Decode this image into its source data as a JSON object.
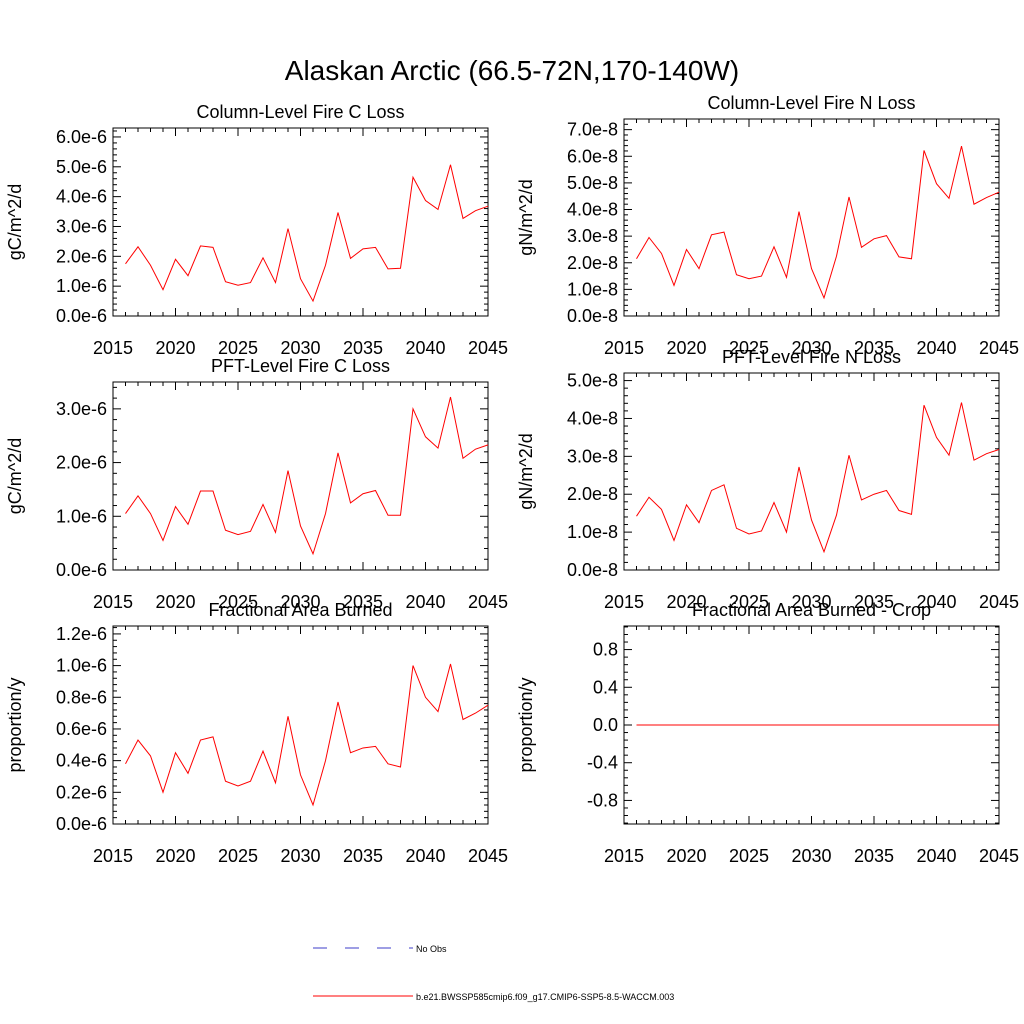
{
  "page_title": "Alaskan Arctic (66.5-72N,170-140W)",
  "colors": {
    "model_line": "#ff0000",
    "obs_line": "#3d3dc8",
    "axes": "#000000"
  },
  "legend": {
    "entries": [
      {
        "label": "No Obs",
        "style": "dashed",
        "color": "#3d3dc8"
      },
      {
        "label": "b.e21.BWSSP585cmip6.f09_g17.CMIP6-SSP5-8.5-WACCM.003",
        "style": "solid",
        "color": "#ff0000"
      }
    ]
  },
  "chart_data": [
    {
      "type": "line",
      "title": "Column-Level Fire C Loss",
      "ylabel": "gC/m^2/d",
      "xlim": [
        2015,
        2045
      ],
      "ylim": [
        0,
        6.3e-06
      ],
      "xticks": [
        2015,
        2020,
        2025,
        2030,
        2035,
        2040,
        2045
      ],
      "xtick_labels": [
        "2015",
        "2020",
        "2025",
        "2030",
        "2035",
        "2040",
        "2045"
      ],
      "yticks": [
        0,
        1e-06,
        2e-06,
        3e-06,
        4e-06,
        5e-06,
        6e-06
      ],
      "ytick_labels": [
        "0.0e-6",
        "1.0e-6",
        "2.0e-6",
        "3.0e-6",
        "4.0e-6",
        "5.0e-6",
        "6.0e-6"
      ],
      "x": [
        2016,
        2017,
        2018,
        2019,
        2020,
        2021,
        2022,
        2023,
        2024,
        2025,
        2026,
        2027,
        2028,
        2029,
        2030,
        2031,
        2032,
        2033,
        2034,
        2035,
        2036,
        2037,
        2038,
        2039,
        2040,
        2041,
        2042,
        2043,
        2044,
        2045
      ],
      "series": [
        {
          "values": [
            1.75e-06,
            2.32e-06,
            1.7e-06,
            8.8e-07,
            1.9e-06,
            1.35e-06,
            2.35e-06,
            2.3e-06,
            1.15e-06,
            1.03e-06,
            1.12e-06,
            1.95e-06,
            1.12e-06,
            2.93e-06,
            1.25e-06,
            5e-07,
            1.7e-06,
            3.47e-06,
            1.93e-06,
            2.25e-06,
            2.3e-06,
            1.58e-06,
            1.6e-06,
            4.65e-06,
            3.87e-06,
            3.57e-06,
            5.07e-06,
            3.27e-06,
            3.53e-06,
            3.68e-06
          ]
        }
      ]
    },
    {
      "type": "line",
      "title": "Column-Level Fire N Loss",
      "ylabel": "gN/m^2/d",
      "xlim": [
        2015,
        2045
      ],
      "ylim": [
        0,
        7.4e-08
      ],
      "xticks": [
        2015,
        2020,
        2025,
        2030,
        2035,
        2040,
        2045
      ],
      "xtick_labels": [
        "2015",
        "2020",
        "2025",
        "2030",
        "2035",
        "2040",
        "2045"
      ],
      "yticks": [
        0,
        1e-08,
        2e-08,
        3e-08,
        4e-08,
        5e-08,
        6e-08,
        7e-08
      ],
      "ytick_labels": [
        "0.0e-8",
        "1.0e-8",
        "2.0e-8",
        "3.0e-8",
        "4.0e-8",
        "5.0e-8",
        "6.0e-8",
        "7.0e-8"
      ],
      "x": [
        2016,
        2017,
        2018,
        2019,
        2020,
        2021,
        2022,
        2023,
        2024,
        2025,
        2026,
        2027,
        2028,
        2029,
        2030,
        2031,
        2032,
        2033,
        2034,
        2035,
        2036,
        2037,
        2038,
        2039,
        2040,
        2041,
        2042,
        2043,
        2044,
        2045
      ],
      "series": [
        {
          "values": [
            2.15e-08,
            2.95e-08,
            2.35e-08,
            1.15e-08,
            2.5e-08,
            1.78e-08,
            3.05e-08,
            3.15e-08,
            1.55e-08,
            1.4e-08,
            1.5e-08,
            2.6e-08,
            1.45e-08,
            3.92e-08,
            1.78e-08,
            6.8e-09,
            2.25e-08,
            4.47e-08,
            2.58e-08,
            2.9e-08,
            3.02e-08,
            2.22e-08,
            2.15e-08,
            6.22e-08,
            4.97e-08,
            4.42e-08,
            6.38e-08,
            4.2e-08,
            4.45e-08,
            4.65e-08
          ]
        }
      ]
    },
    {
      "type": "line",
      "title": "PFT-Level Fire C Loss",
      "ylabel": "gC/m^2/d",
      "xlim": [
        2015,
        2045
      ],
      "ylim": [
        0,
        3.5e-06
      ],
      "xticks": [
        2015,
        2020,
        2025,
        2030,
        2035,
        2040,
        2045
      ],
      "xtick_labels": [
        "2015",
        "2020",
        "2025",
        "2030",
        "2035",
        "2040",
        "2045"
      ],
      "yticks": [
        0,
        1e-06,
        2e-06,
        3e-06
      ],
      "ytick_labels": [
        "0.0e-6",
        "1.0e-6",
        "2.0e-6",
        "3.0e-6"
      ],
      "x": [
        2016,
        2017,
        2018,
        2019,
        2020,
        2021,
        2022,
        2023,
        2024,
        2025,
        2026,
        2027,
        2028,
        2029,
        2030,
        2031,
        2032,
        2033,
        2034,
        2035,
        2036,
        2037,
        2038,
        2039,
        2040,
        2041,
        2042,
        2043,
        2044,
        2045
      ],
      "series": [
        {
          "values": [
            1.05e-06,
            1.38e-06,
            1.05e-06,
            5.5e-07,
            1.18e-06,
            8.5e-07,
            1.47e-06,
            1.47e-06,
            7.4e-07,
            6.6e-07,
            7.2e-07,
            1.22e-06,
            7e-07,
            1.85e-06,
            8.2e-07,
            3e-07,
            1.05e-06,
            2.18e-06,
            1.25e-06,
            1.42e-06,
            1.48e-06,
            1.02e-06,
            1.02e-06,
            3e-06,
            2.48e-06,
            2.27e-06,
            3.22e-06,
            2.08e-06,
            2.25e-06,
            2.33e-06
          ]
        }
      ]
    },
    {
      "type": "line",
      "title": "PFT-Level Fire N Loss",
      "ylabel": "gN/m^2/d",
      "xlim": [
        2015,
        2045
      ],
      "ylim": [
        0,
        5.2e-08
      ],
      "xticks": [
        2015,
        2020,
        2025,
        2030,
        2035,
        2040,
        2045
      ],
      "xtick_labels": [
        "2015",
        "2020",
        "2025",
        "2030",
        "2035",
        "2040",
        "2045"
      ],
      "yticks": [
        0,
        1e-08,
        2e-08,
        3e-08,
        4e-08,
        5e-08
      ],
      "ytick_labels": [
        "0.0e-8",
        "1.0e-8",
        "2.0e-8",
        "3.0e-8",
        "4.0e-8",
        "5.0e-8"
      ],
      "x": [
        2016,
        2017,
        2018,
        2019,
        2020,
        2021,
        2022,
        2023,
        2024,
        2025,
        2026,
        2027,
        2028,
        2029,
        2030,
        2031,
        2032,
        2033,
        2034,
        2035,
        2036,
        2037,
        2038,
        2039,
        2040,
        2041,
        2042,
        2043,
        2044,
        2045
      ],
      "series": [
        {
          "values": [
            1.42e-08,
            1.92e-08,
            1.6e-08,
            7.8e-09,
            1.72e-08,
            1.25e-08,
            2.1e-08,
            2.25e-08,
            1.1e-08,
            9.5e-09,
            1.03e-08,
            1.78e-08,
            1e-08,
            2.72e-08,
            1.32e-08,
            4.8e-09,
            1.45e-08,
            3.03e-08,
            1.85e-08,
            2e-08,
            2.1e-08,
            1.57e-08,
            1.47e-08,
            4.35e-08,
            3.5e-08,
            3.03e-08,
            4.42e-08,
            2.9e-08,
            3.07e-08,
            3.18e-08
          ]
        }
      ]
    },
    {
      "type": "line",
      "title": "Fractional Area Burned",
      "ylabel": "proportion/y",
      "xlim": [
        2015,
        2045
      ],
      "ylim": [
        0,
        1.25e-06
      ],
      "xticks": [
        2015,
        2020,
        2025,
        2030,
        2035,
        2040,
        2045
      ],
      "xtick_labels": [
        "2015",
        "2020",
        "2025",
        "2030",
        "2035",
        "2040",
        "2045"
      ],
      "yticks": [
        0,
        2e-07,
        4e-07,
        6e-07,
        8e-07,
        1e-06,
        1.2e-06
      ],
      "ytick_labels": [
        "0.0e-6",
        "0.2e-6",
        "0.4e-6",
        "0.6e-6",
        "0.8e-6",
        "1.0e-6",
        "1.2e-6"
      ],
      "x": [
        2016,
        2017,
        2018,
        2019,
        2020,
        2021,
        2022,
        2023,
        2024,
        2025,
        2026,
        2027,
        2028,
        2029,
        2030,
        2031,
        2032,
        2033,
        2034,
        2035,
        2036,
        2037,
        2038,
        2039,
        2040,
        2041,
        2042,
        2043,
        2044,
        2045
      ],
      "series": [
        {
          "values": [
            3.8e-07,
            5.3e-07,
            4.3e-07,
            2e-07,
            4.5e-07,
            3.2e-07,
            5.3e-07,
            5.5e-07,
            2.7e-07,
            2.4e-07,
            2.7e-07,
            4.6e-07,
            2.6e-07,
            6.8e-07,
            3.1e-07,
            1.2e-07,
            4e-07,
            7.7e-07,
            4.5e-07,
            4.8e-07,
            4.9e-07,
            3.8e-07,
            3.6e-07,
            1e-06,
            8e-07,
            7.1e-07,
            1.01e-06,
            6.6e-07,
            7e-07,
            7.5e-07
          ]
        }
      ]
    },
    {
      "type": "line",
      "title": "Fractional Area Burned - Crop",
      "ylabel": "proportion/y",
      "xlim": [
        2015,
        2045
      ],
      "ylim": [
        -1.05,
        1.05
      ],
      "xticks": [
        2015,
        2020,
        2025,
        2030,
        2035,
        2040,
        2045
      ],
      "xtick_labels": [
        "2015",
        "2020",
        "2025",
        "2030",
        "2035",
        "2040",
        "2045"
      ],
      "yticks": [
        -0.8,
        -0.4,
        0,
        0.4,
        0.8
      ],
      "ytick_labels": [
        "-0.8",
        "-0.4",
        "0.0",
        "0.4",
        "0.8"
      ],
      "x": [
        2016,
        2017,
        2018,
        2019,
        2020,
        2021,
        2022,
        2023,
        2024,
        2025,
        2026,
        2027,
        2028,
        2029,
        2030,
        2031,
        2032,
        2033,
        2034,
        2035,
        2036,
        2037,
        2038,
        2039,
        2040,
        2041,
        2042,
        2043,
        2044,
        2045
      ],
      "series": [
        {
          "values": [
            0,
            0,
            0,
            0,
            0,
            0,
            0,
            0,
            0,
            0,
            0,
            0,
            0,
            0,
            0,
            0,
            0,
            0,
            0,
            0,
            0,
            0,
            0,
            0,
            0,
            0,
            0,
            0,
            0,
            0
          ]
        }
      ]
    }
  ]
}
